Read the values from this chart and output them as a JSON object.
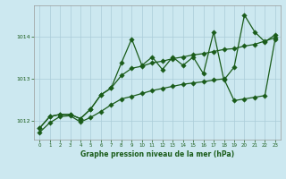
{
  "xlabel": "Graphe pression niveau de la mer (hPa)",
  "bg_color": "#cce8f0",
  "plot_bg_color": "#cce8f0",
  "grid_color": "#aaccd8",
  "line_color": "#1a5c1a",
  "xlim": [
    -0.5,
    23.5
  ],
  "ylim": [
    1011.55,
    1014.75
  ],
  "yticks": [
    1012,
    1013,
    1014
  ],
  "xticks": [
    0,
    1,
    2,
    3,
    4,
    5,
    6,
    7,
    8,
    9,
    10,
    11,
    12,
    13,
    14,
    15,
    16,
    17,
    18,
    19,
    20,
    21,
    22,
    23
  ],
  "series1": [
    1011.72,
    1011.95,
    1012.1,
    1012.12,
    1011.97,
    1012.08,
    1012.22,
    1012.38,
    1012.52,
    1012.58,
    1012.65,
    1012.72,
    1012.77,
    1012.82,
    1012.87,
    1012.9,
    1012.93,
    1012.97,
    1013.0,
    1012.48,
    1012.52,
    1012.56,
    1012.6,
    1013.95
  ],
  "series2": [
    1011.82,
    1012.1,
    1012.15,
    1012.15,
    1012.05,
    1012.28,
    1012.62,
    1012.78,
    1013.38,
    1013.95,
    1013.32,
    1013.52,
    1013.22,
    1013.52,
    1013.32,
    1013.52,
    1013.12,
    1014.12,
    1012.97,
    1013.28,
    1014.52,
    1014.12,
    1013.88,
    1014.05
  ],
  "series3": [
    1011.82,
    1012.1,
    1012.15,
    1012.15,
    1012.05,
    1012.28,
    1012.62,
    1012.78,
    1013.08,
    1013.25,
    1013.3,
    1013.38,
    1013.42,
    1013.48,
    1013.52,
    1013.57,
    1013.6,
    1013.65,
    1013.7,
    1013.72,
    1013.78,
    1013.82,
    1013.9,
    1013.98
  ]
}
